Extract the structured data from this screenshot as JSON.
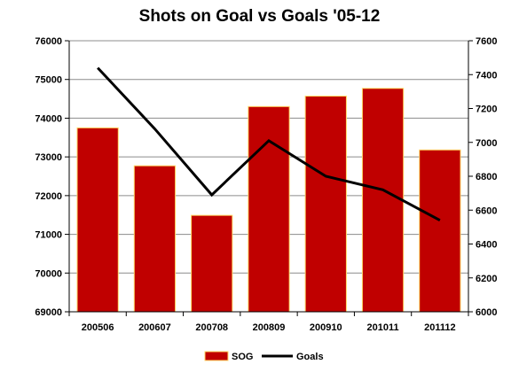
{
  "chart_data": {
    "type": "bar",
    "title": "Shots on Goal vs Goals '05-12",
    "categories": [
      "200506",
      "200607",
      "200708",
      "200809",
      "200910",
      "201011",
      "201112"
    ],
    "series": [
      {
        "name": "SOG",
        "type": "bar",
        "axis": "left",
        "color": "#C00000",
        "values": [
          73750,
          72770,
          71490,
          74300,
          74570,
          74770,
          73180
        ]
      },
      {
        "name": "Goals",
        "type": "line",
        "axis": "right",
        "color": "#000000",
        "values": [
          7440,
          7080,
          6690,
          7010,
          6800,
          6720,
          6540
        ]
      }
    ],
    "y_left": {
      "min": 69000,
      "max": 76000,
      "step": 1000,
      "ticks": [
        "69000",
        "70000",
        "71000",
        "72000",
        "73000",
        "74000",
        "75000",
        "76000"
      ]
    },
    "y_right": {
      "min": 6000,
      "max": 7600,
      "step": 200,
      "ticks": [
        "6000",
        "6200",
        "6400",
        "6600",
        "6800",
        "7000",
        "7200",
        "7400",
        "7600"
      ]
    },
    "grid": true,
    "legend": "bottom",
    "bar_border_color": "#FFD966",
    "xlabel": "",
    "ylabel": ""
  }
}
